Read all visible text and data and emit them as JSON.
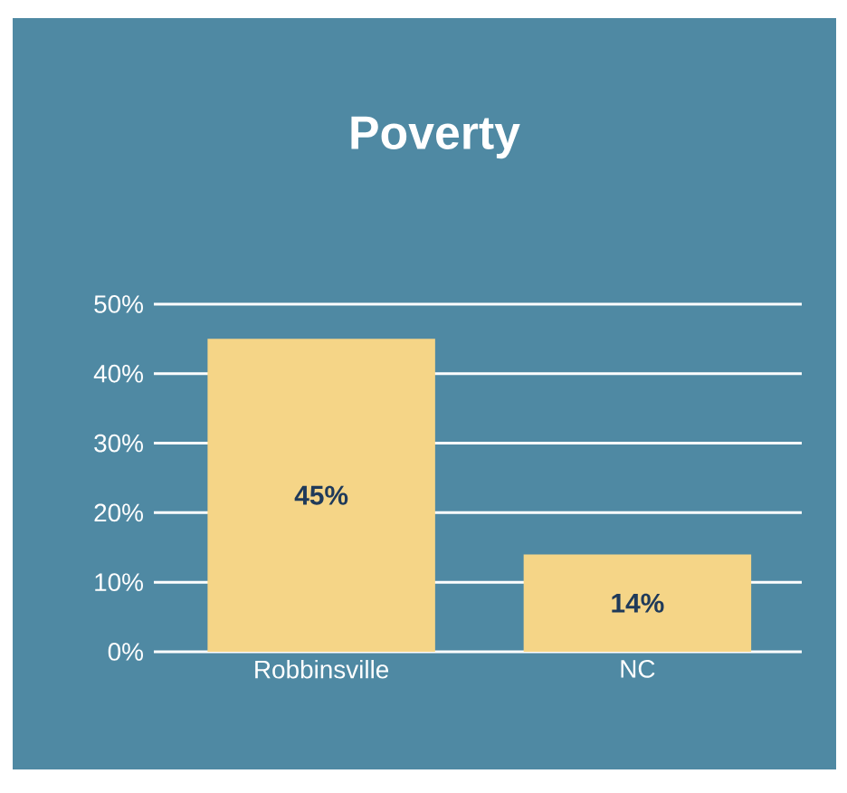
{
  "chart_data": {
    "type": "bar",
    "title": "Poverty",
    "categories": [
      "Robbinsville",
      "NC"
    ],
    "values": [
      45,
      14
    ],
    "value_labels": [
      "45%",
      "14%"
    ],
    "color": "#f5d587",
    "ylim": [
      0,
      50
    ],
    "yticks": [
      {
        "value": 0,
        "label": "0%"
      },
      {
        "value": 10,
        "label": "10%"
      },
      {
        "value": 20,
        "label": "20%"
      },
      {
        "value": 30,
        "label": "30%"
      },
      {
        "value": 40,
        "label": "40%"
      },
      {
        "value": 50,
        "label": "50%"
      }
    ],
    "grid": "y"
  }
}
